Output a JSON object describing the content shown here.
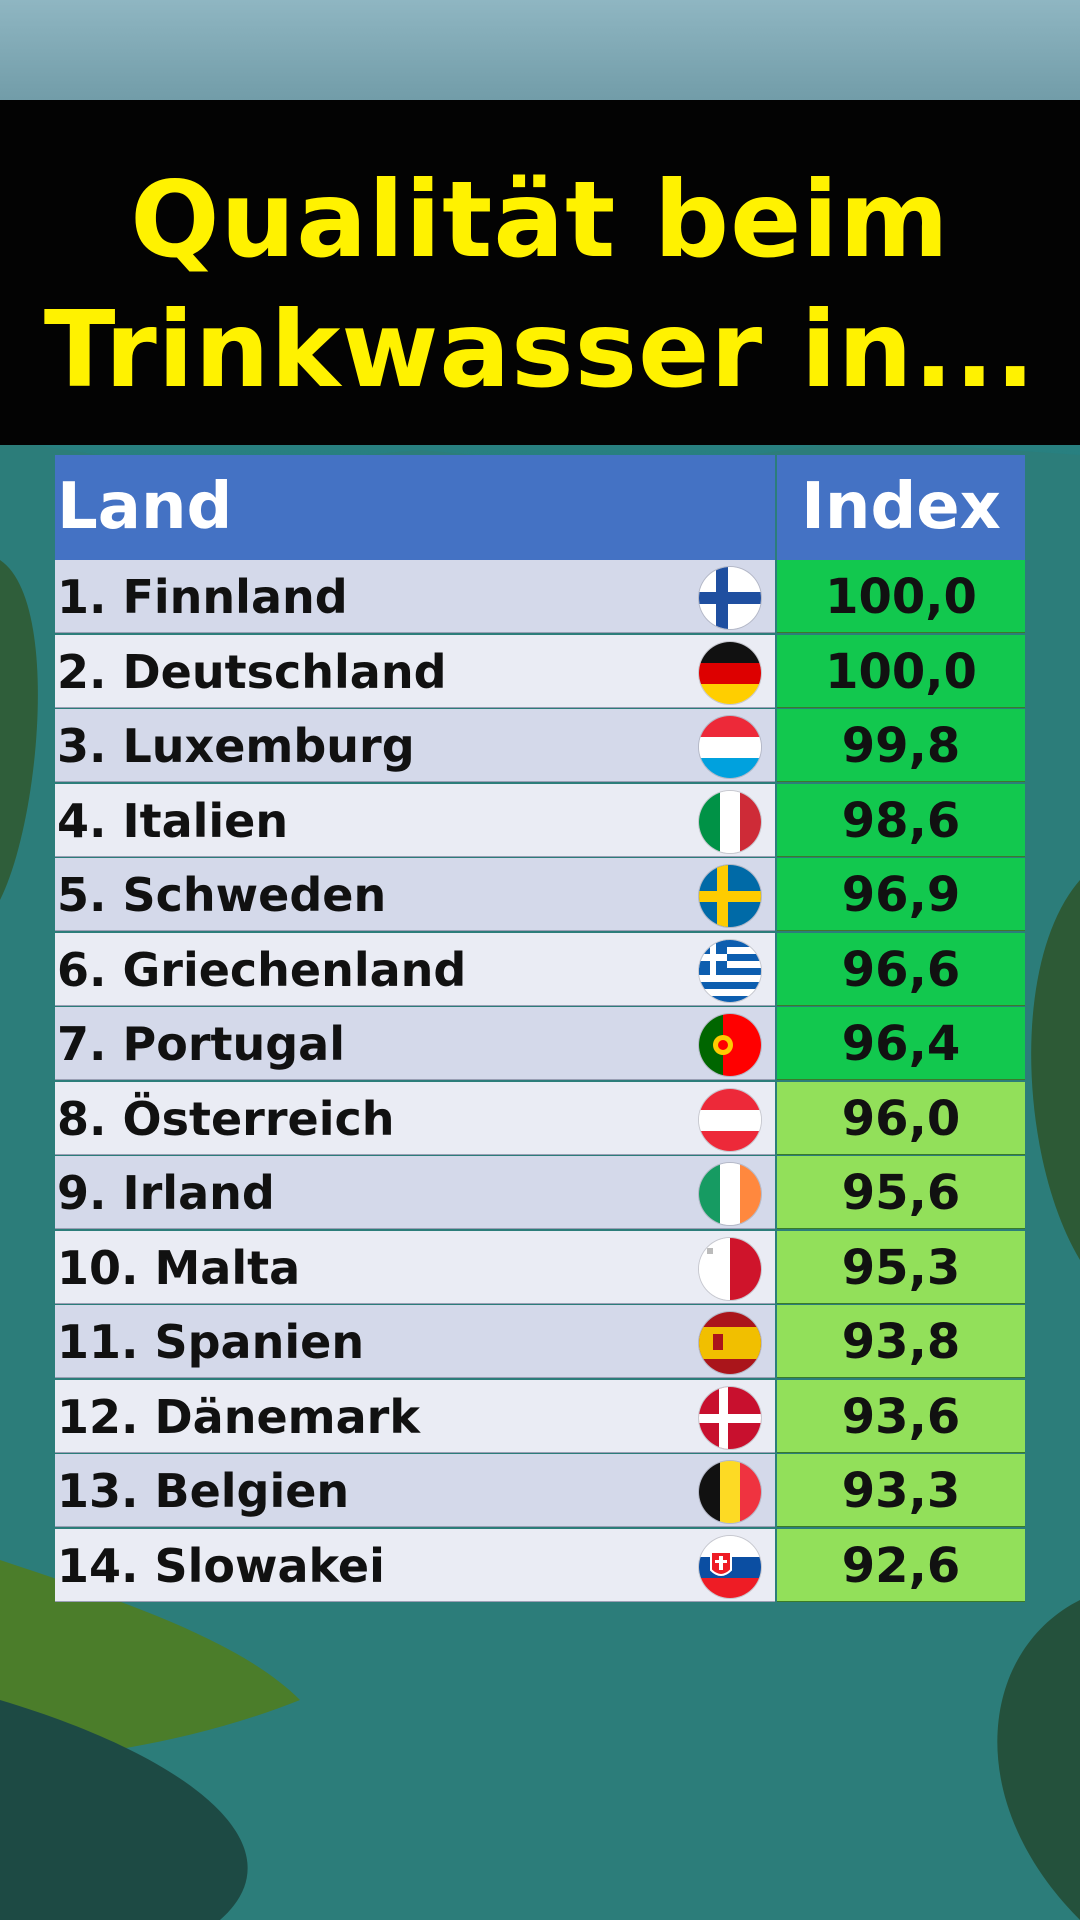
{
  "title": {
    "line1": "Qualität beim",
    "line2": "Trinkwasser in..."
  },
  "colors": {
    "title_bg": "#030303",
    "title_text": "#fff200",
    "header_bg": "#4472c4",
    "index_top7": "#12c84e",
    "index_rest": "#92e05a"
  },
  "chart_data": {
    "type": "table",
    "columns": [
      "Land",
      "Index"
    ],
    "rows": [
      {
        "land": "1. Finnland",
        "flag": "finland-flag-icon",
        "index": "100,0",
        "tier": "a"
      },
      {
        "land": "2. Deutschland",
        "flag": "germany-flag-icon",
        "index": "100,0",
        "tier": "a"
      },
      {
        "land": "3. Luxemburg",
        "flag": "luxembourg-flag-icon",
        "index": "99,8",
        "tier": "a"
      },
      {
        "land": "4. Italien",
        "flag": "italy-flag-icon",
        "index": "98,6",
        "tier": "a"
      },
      {
        "land": "5. Schweden",
        "flag": "sweden-flag-icon",
        "index": "96,9",
        "tier": "a"
      },
      {
        "land": "6. Griechenland",
        "flag": "greece-flag-icon",
        "index": "96,6",
        "tier": "a"
      },
      {
        "land": "7. Portugal",
        "flag": "portugal-flag-icon",
        "index": "96,4",
        "tier": "a"
      },
      {
        "land": "8. Österreich",
        "flag": "austria-flag-icon",
        "index": "96,0",
        "tier": "b"
      },
      {
        "land": "9. Irland",
        "flag": "ireland-flag-icon",
        "index": "95,6",
        "tier": "b"
      },
      {
        "land": "10. Malta",
        "flag": "malta-flag-icon",
        "index": "95,3",
        "tier": "b"
      },
      {
        "land": "11. Spanien",
        "flag": "spain-flag-icon",
        "index": "93,8",
        "tier": "b"
      },
      {
        "land": "12. Dänemark",
        "flag": "denmark-flag-icon",
        "index": "93,6",
        "tier": "b"
      },
      {
        "land": "13. Belgien",
        "flag": "belgium-flag-icon",
        "index": "93,3",
        "tier": "b"
      },
      {
        "land": "14. Slowakei",
        "flag": "slovakia-flag-icon",
        "index": "92,6",
        "tier": "b"
      }
    ]
  }
}
